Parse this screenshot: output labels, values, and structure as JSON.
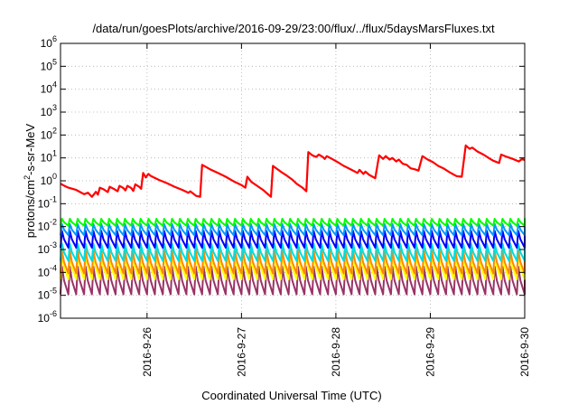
{
  "chart_data": {
    "type": "line",
    "title": "/data/run/goesPlots/archive/2016-09-29/23:00/flux/../flux/5daysMarsFluxes.txt",
    "xlabel": "Coordinated Universal Time (UTC)",
    "ylabel": {
      "pre": "protons/cm",
      "sup": "2",
      "post": "-s-sr-MeV"
    },
    "y_scale": "log",
    "ylim": [
      1e-06,
      1000000.0
    ],
    "xlim": [
      "2016-09-25T02:00",
      "2016-09-30T00:00"
    ],
    "grid": true,
    "legend": "none",
    "y_ticks": [
      {
        "value": 1e-06,
        "base": "10",
        "exp": "-6"
      },
      {
        "value": 1e-05,
        "base": "10",
        "exp": "-5"
      },
      {
        "value": 0.0001,
        "base": "10",
        "exp": "-4"
      },
      {
        "value": 0.001,
        "base": "10",
        "exp": "-3"
      },
      {
        "value": 0.01,
        "base": "10",
        "exp": "-2"
      },
      {
        "value": 0.1,
        "base": "10",
        "exp": "-1"
      },
      {
        "value": 1.0,
        "base": "10",
        "exp": "0"
      },
      {
        "value": 10.0,
        "base": "10",
        "exp": "1"
      },
      {
        "value": 100.0,
        "base": "10",
        "exp": "2"
      },
      {
        "value": 1000.0,
        "base": "10",
        "exp": "3"
      },
      {
        "value": 10000.0,
        "base": "10",
        "exp": "4"
      },
      {
        "value": 100000.0,
        "base": "10",
        "exp": "5"
      },
      {
        "value": 1000000.0,
        "base": "10",
        "exp": "6"
      }
    ],
    "x_ticks": [
      {
        "value": "2016-09-26T00:00",
        "label": "2016-9-26"
      },
      {
        "value": "2016-09-27T00:00",
        "label": "2016-9-27"
      },
      {
        "value": "2016-09-28T00:00",
        "label": "2016-9-28"
      },
      {
        "value": "2016-09-29T00:00",
        "label": "2016-9-29"
      },
      {
        "value": "2016-09-30T00:00",
        "label": "2016-9-30"
      }
    ],
    "series": [
      {
        "color": "#ff0000",
        "style": "line",
        "points": [
          [
            "2016-09-25T02:00",
            0.75
          ],
          [
            "2016-09-25T03:00",
            0.6
          ],
          [
            "2016-09-25T04:00",
            0.5
          ],
          [
            "2016-09-25T05:00",
            0.45
          ],
          [
            "2016-09-25T06:00",
            0.4
          ],
          [
            "2016-09-25T07:00",
            0.32
          ],
          [
            "2016-09-25T08:00",
            0.26
          ],
          [
            "2016-09-25T09:00",
            0.3
          ],
          [
            "2016-09-25T10:00",
            0.2
          ],
          [
            "2016-09-25T11:00",
            0.33
          ],
          [
            "2016-09-25T11:30",
            0.25
          ],
          [
            "2016-09-25T12:00",
            0.5
          ],
          [
            "2016-09-25T13:00",
            0.42
          ],
          [
            "2016-09-25T14:00",
            0.32
          ],
          [
            "2016-09-25T14:30",
            0.55
          ],
          [
            "2016-09-25T15:30",
            0.45
          ],
          [
            "2016-09-25T16:30",
            0.35
          ],
          [
            "2016-09-25T17:00",
            0.6
          ],
          [
            "2016-09-25T18:00",
            0.48
          ],
          [
            "2016-09-25T18:30",
            0.38
          ],
          [
            "2016-09-25T19:00",
            0.6
          ],
          [
            "2016-09-25T20:00",
            0.48
          ],
          [
            "2016-09-25T20:30",
            0.36
          ],
          [
            "2016-09-25T21:00",
            0.7
          ],
          [
            "2016-09-25T22:00",
            0.55
          ],
          [
            "2016-09-25T22:30",
            0.45
          ],
          [
            "2016-09-25T23:00",
            2.2
          ],
          [
            "2016-09-25T23:40",
            1.4
          ],
          [
            "2016-09-26T00:20",
            2.0
          ],
          [
            "2016-09-26T01:00",
            1.6
          ],
          [
            "2016-09-26T03:00",
            1.1
          ],
          [
            "2016-09-26T05:00",
            0.8
          ],
          [
            "2016-09-26T07:00",
            0.55
          ],
          [
            "2016-09-26T09:00",
            0.4
          ],
          [
            "2016-09-26T10:30",
            0.3
          ],
          [
            "2016-09-26T11:00",
            0.35
          ],
          [
            "2016-09-26T12:30",
            0.22
          ],
          [
            "2016-09-26T13:30",
            0.2
          ],
          [
            "2016-09-26T14:00",
            5.0
          ],
          [
            "2016-09-26T16:00",
            3.2
          ],
          [
            "2016-09-26T18:00",
            2.2
          ],
          [
            "2016-09-26T20:00",
            1.5
          ],
          [
            "2016-09-26T22:00",
            0.95
          ],
          [
            "2016-09-27T00:00",
            0.65
          ],
          [
            "2016-09-27T01:00",
            0.5
          ],
          [
            "2016-09-27T01:30",
            1.5
          ],
          [
            "2016-09-27T02:30",
            0.9
          ],
          [
            "2016-09-27T04:00",
            0.6
          ],
          [
            "2016-09-27T05:30",
            0.4
          ],
          [
            "2016-09-27T06:30",
            0.28
          ],
          [
            "2016-09-27T07:30",
            0.2
          ],
          [
            "2016-09-27T08:00",
            4.5
          ],
          [
            "2016-09-27T10:00",
            2.5
          ],
          [
            "2016-09-27T11:30",
            1.7
          ],
          [
            "2016-09-27T13:00",
            1.1
          ],
          [
            "2016-09-27T14:00",
            0.75
          ],
          [
            "2016-09-27T15:30",
            0.5
          ],
          [
            "2016-09-27T16:30",
            0.35
          ],
          [
            "2016-09-27T17:00",
            18
          ],
          [
            "2016-09-27T18:00",
            13
          ],
          [
            "2016-09-27T19:00",
            11
          ],
          [
            "2016-09-27T19:40",
            14
          ],
          [
            "2016-09-27T20:40",
            11
          ],
          [
            "2016-09-27T21:10",
            9
          ],
          [
            "2016-09-27T21:40",
            12
          ],
          [
            "2016-09-27T23:00",
            9
          ],
          [
            "2016-09-28T00:30",
            6.5
          ],
          [
            "2016-09-28T02:00",
            4.5
          ],
          [
            "2016-09-28T04:00",
            3.0
          ],
          [
            "2016-09-28T05:30",
            2.2
          ],
          [
            "2016-09-28T06:00",
            3.0
          ],
          [
            "2016-09-28T07:00",
            2.0
          ],
          [
            "2016-09-28T07:30",
            2.5
          ],
          [
            "2016-09-28T08:30",
            1.8
          ],
          [
            "2016-09-28T10:00",
            1.3
          ],
          [
            "2016-09-28T11:00",
            13
          ],
          [
            "2016-09-28T12:00",
            9
          ],
          [
            "2016-09-28T12:40",
            12
          ],
          [
            "2016-09-28T13:40",
            8.5
          ],
          [
            "2016-09-28T14:20",
            10
          ],
          [
            "2016-09-28T15:20",
            7
          ],
          [
            "2016-09-28T16:00",
            8.5
          ],
          [
            "2016-09-28T17:00",
            5.5
          ],
          [
            "2016-09-28T18:00",
            5.0
          ],
          [
            "2016-09-28T19:00",
            3.5
          ],
          [
            "2016-09-28T20:00",
            3.2
          ],
          [
            "2016-09-28T21:00",
            2.8
          ],
          [
            "2016-09-28T22:00",
            12
          ],
          [
            "2016-09-28T23:20",
            8.5
          ],
          [
            "2016-09-29T00:40",
            6.5
          ],
          [
            "2016-09-29T02:00",
            4.5
          ],
          [
            "2016-09-29T03:20",
            3.5
          ],
          [
            "2016-09-29T04:40",
            2.5
          ],
          [
            "2016-09-29T05:40",
            2.0
          ],
          [
            "2016-09-29T06:40",
            1.6
          ],
          [
            "2016-09-29T08:00",
            1.5
          ],
          [
            "2016-09-29T09:00",
            35
          ],
          [
            "2016-09-29T10:00",
            25
          ],
          [
            "2016-09-29T10:40",
            28
          ],
          [
            "2016-09-29T12:00",
            19
          ],
          [
            "2016-09-29T13:30",
            14
          ],
          [
            "2016-09-29T15:00",
            9.5
          ],
          [
            "2016-09-29T16:00",
            7.5
          ],
          [
            "2016-09-29T17:30",
            6.0
          ],
          [
            "2016-09-29T18:00",
            14
          ],
          [
            "2016-09-29T19:30",
            11
          ],
          [
            "2016-09-29T21:00",
            9
          ],
          [
            "2016-09-29T22:30",
            7
          ],
          [
            "2016-09-29T23:20",
            9
          ],
          [
            "2016-09-30T00:00",
            8
          ]
        ]
      },
      {
        "color": "#00ff00",
        "style": "sawtooth",
        "peak": 0.022,
        "trough": 0.011,
        "period_hours": 2
      },
      {
        "color": "#0099ff",
        "style": "sawtooth",
        "peak": 0.013,
        "trough": 0.0042,
        "period_hours": 2
      },
      {
        "color": "#0000ff",
        "style": "sawtooth",
        "peak": 0.0065,
        "trough": 0.0012,
        "period_hours": 2
      },
      {
        "color": "#00dddd",
        "style": "sawtooth",
        "peak": 0.0018,
        "trough": 0.00032,
        "period_hours": 2
      },
      {
        "color": "#ff8800",
        "style": "sawtooth",
        "peak": 0.0009,
        "trough": 9e-05,
        "period_hours": 2
      },
      {
        "color": "#ffff00",
        "style": "sawtooth",
        "peak": 0.0006,
        "trough": 5e-05,
        "period_hours": 2
      },
      {
        "color": "#993366",
        "style": "sawtooth",
        "peak": 0.00018,
        "trough": 1.1e-05,
        "period_hours": 2
      }
    ]
  }
}
